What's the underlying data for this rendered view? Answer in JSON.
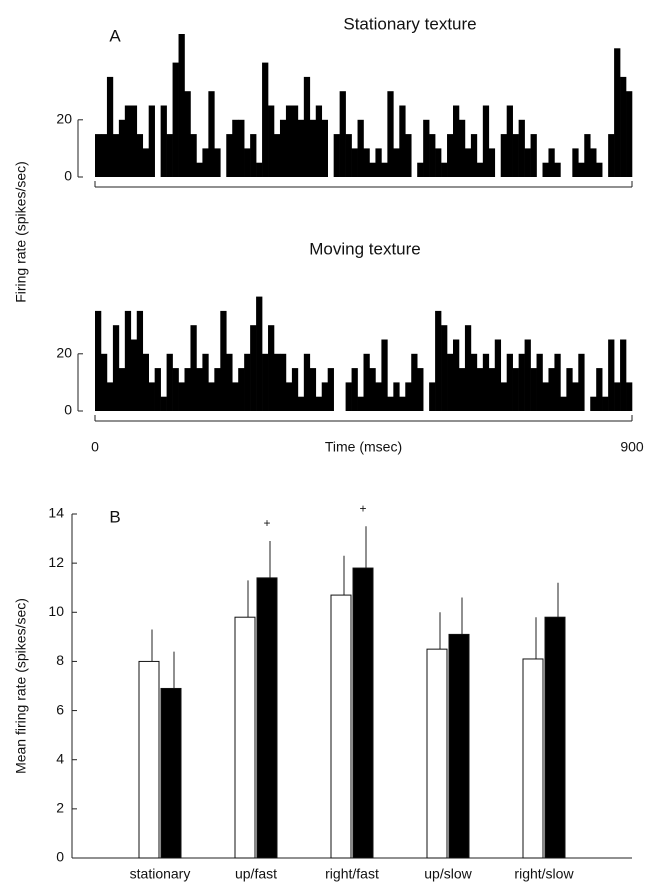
{
  "chart_data": [
    {
      "type": "histogram",
      "panel_label": "A",
      "title": "Stationary  texture",
      "ylabel": "Firing rate (spikes/sec)",
      "color": "#000000",
      "bins": [
        0,
        10,
        20,
        30,
        40,
        50,
        60,
        70,
        80,
        90,
        100,
        110,
        120,
        130,
        140,
        150,
        160,
        170,
        180,
        190,
        200,
        210,
        220,
        230,
        240,
        250,
        260,
        270,
        280,
        290,
        300,
        310,
        320,
        330,
        340,
        350,
        360,
        370,
        380,
        390,
        400,
        410,
        420,
        430,
        440,
        450,
        460,
        470,
        480,
        490,
        500,
        510,
        520,
        530,
        540,
        550,
        560,
        570,
        580,
        590,
        600,
        610,
        620,
        630,
        640,
        650,
        660,
        670,
        680,
        690,
        700,
        710,
        720,
        730,
        740,
        750,
        760,
        770,
        780,
        790,
        800,
        810,
        820,
        830,
        840,
        850,
        860,
        870,
        880,
        890,
        900
      ],
      "values": [
        15,
        15,
        35,
        15,
        20,
        25,
        25,
        15,
        10,
        25,
        0,
        25,
        15,
        40,
        50,
        30,
        15,
        5,
        10,
        30,
        10,
        0,
        15,
        20,
        20,
        10,
        15,
        5,
        40,
        25,
        15,
        20,
        25,
        25,
        20,
        35,
        20,
        25,
        20,
        0,
        15,
        30,
        15,
        10,
        20,
        10,
        5,
        10,
        5,
        30,
        10,
        25,
        15,
        0,
        5,
        20,
        15,
        10,
        5,
        15,
        25,
        20,
        10,
        15,
        5,
        25,
        10,
        0,
        15,
        25,
        15,
        20,
        10,
        15,
        0,
        5,
        10,
        5,
        0,
        0,
        10,
        5,
        15,
        10,
        5,
        0,
        15,
        45,
        35,
        30
      ],
      "xlim": [
        0,
        900
      ],
      "ylim": [
        0,
        50
      ],
      "yticks": [
        0,
        20
      ]
    },
    {
      "type": "histogram",
      "title": "Moving texture",
      "xlabel": "Time (msec)",
      "color": "#000000",
      "bins": [
        0,
        10,
        20,
        30,
        40,
        50,
        60,
        70,
        80,
        90,
        100,
        110,
        120,
        130,
        140,
        150,
        160,
        170,
        180,
        190,
        200,
        210,
        220,
        230,
        240,
        250,
        260,
        270,
        280,
        290,
        300,
        310,
        320,
        330,
        340,
        350,
        360,
        370,
        380,
        390,
        400,
        410,
        420,
        430,
        440,
        450,
        460,
        470,
        480,
        490,
        500,
        510,
        520,
        530,
        540,
        550,
        560,
        570,
        580,
        590,
        600,
        610,
        620,
        630,
        640,
        650,
        660,
        670,
        680,
        690,
        700,
        710,
        720,
        730,
        740,
        750,
        760,
        770,
        780,
        790,
        800,
        810,
        820,
        830,
        840,
        850,
        860,
        870,
        880,
        890,
        900
      ],
      "values": [
        35,
        20,
        10,
        30,
        15,
        35,
        25,
        35,
        20,
        10,
        15,
        5,
        20,
        15,
        10,
        15,
        30,
        15,
        20,
        10,
        15,
        35,
        20,
        10,
        15,
        20,
        30,
        40,
        20,
        30,
        20,
        20,
        10,
        15,
        5,
        20,
        15,
        5,
        10,
        15,
        0,
        0,
        10,
        15,
        5,
        20,
        15,
        10,
        25,
        5,
        10,
        5,
        10,
        20,
        15,
        0,
        10,
        35,
        30,
        20,
        25,
        15,
        30,
        20,
        15,
        20,
        15,
        25,
        10,
        20,
        15,
        20,
        25,
        15,
        20,
        10,
        15,
        20,
        5,
        15,
        10,
        20,
        0,
        5,
        15,
        5,
        25,
        10,
        25,
        10
      ],
      "xlim": [
        0,
        900
      ],
      "ylim": [
        0,
        50
      ],
      "yticks": [
        0,
        20
      ],
      "xticks": [
        0,
        900
      ]
    },
    {
      "type": "bar",
      "panel_label": "B",
      "ylabel": "Mean firing rate (spikes/sec)",
      "categories": [
        "stationary",
        "up/fast",
        "right/fast",
        "up/slow",
        "right/slow"
      ],
      "series": [
        {
          "color": "#ffffff",
          "values": [
            8.0,
            9.8,
            10.7,
            8.5,
            8.1
          ],
          "errors": [
            1.3,
            1.5,
            1.6,
            1.5,
            1.7
          ]
        },
        {
          "color": "#000000",
          "values": [
            6.9,
            11.4,
            11.8,
            9.1,
            9.8
          ],
          "errors": [
            1.5,
            1.5,
            1.7,
            1.5,
            1.4
          ],
          "annotations": [
            null,
            "+",
            "+",
            null,
            null
          ]
        }
      ],
      "ylim": [
        0,
        14
      ],
      "yticks": [
        0,
        2,
        4,
        6,
        8,
        10,
        12,
        14
      ]
    }
  ]
}
